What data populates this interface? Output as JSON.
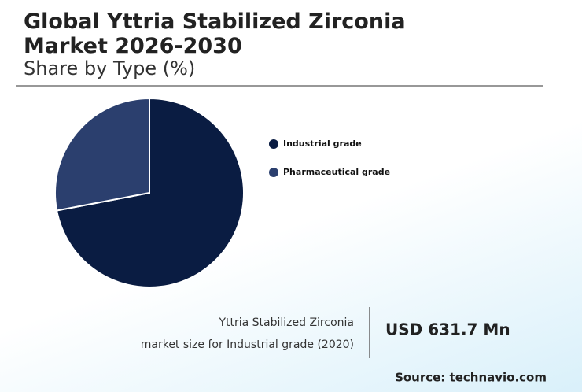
{
  "chart_data": {
    "type": "pie",
    "title": "Global Yttria Stabilized Zirconia Market 2026-2030",
    "subtitle": "Share by Type (%)",
    "categories": [
      "Industrial grade",
      "Pharmaceutical grade"
    ],
    "values": [
      72,
      28
    ],
    "colors": [
      "#0a1c42",
      "#2b3f6e"
    ]
  },
  "callout": {
    "lines": [
      "Yttria Stabilized Zirconia",
      "market size for Industrial grade (2020)"
    ],
    "value": "USD 631.7 Mn"
  },
  "source": "Source: technavio.com"
}
